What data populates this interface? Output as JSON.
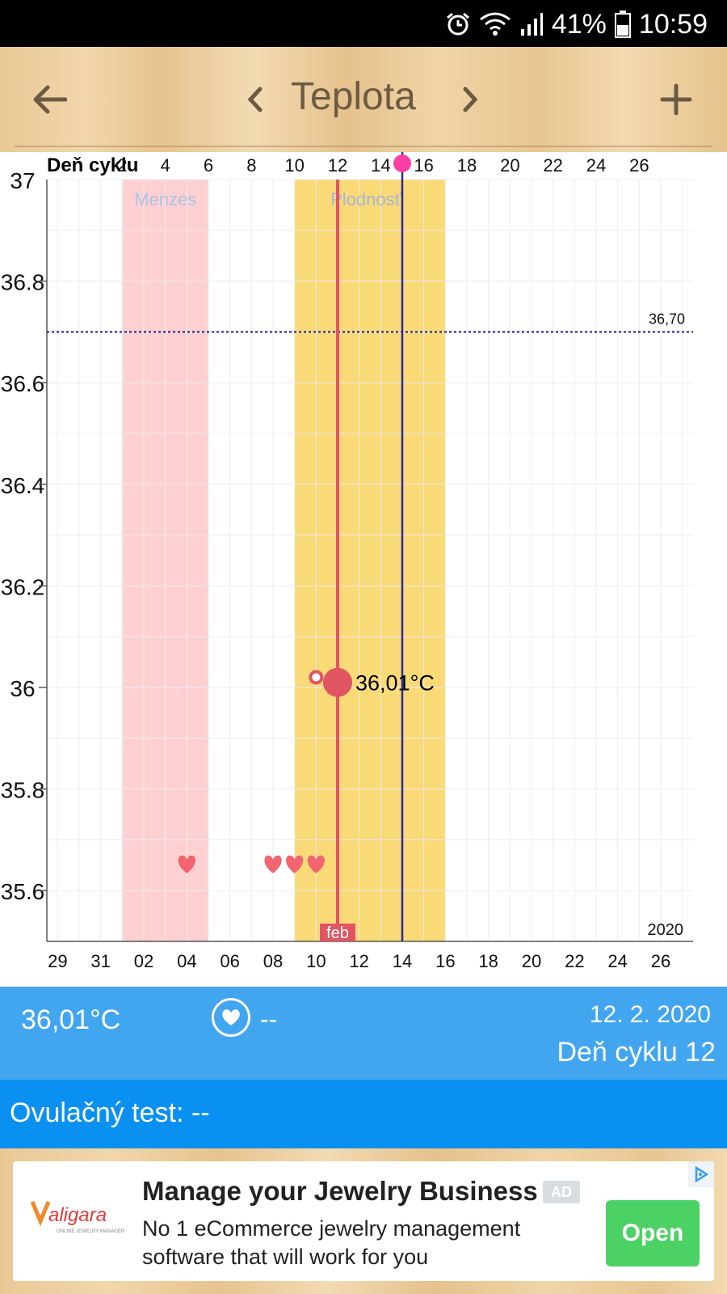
{
  "status_bar": {
    "battery": "41%",
    "time": "10:59",
    "icons": [
      "alarm-icon",
      "wifi-icon",
      "signal-icon",
      "battery-icon"
    ]
  },
  "toolbar": {
    "title": "Teplota",
    "back_icon": "arrow-left-icon",
    "prev_icon": "chevron-left-icon",
    "next_icon": "chevron-right-icon",
    "add_icon": "plus-icon"
  },
  "chart_data": {
    "type": "scatter",
    "top_axis_label": "Deň cyklu",
    "top_ticks": [
      "2",
      "4",
      "6",
      "8",
      "10",
      "12",
      "14",
      "16",
      "18",
      "20",
      "22",
      "24",
      "26"
    ],
    "bottom_ticks": [
      "29",
      "31",
      "02",
      "04",
      "06",
      "08",
      "10",
      "12",
      "14",
      "16",
      "18",
      "20",
      "22",
      "24",
      "26"
    ],
    "y_ticks": [
      "37",
      "36.8",
      "36.6",
      "36.4",
      "36.2",
      "36",
      "35.8",
      "35.6"
    ],
    "ylim": [
      35.5,
      37
    ],
    "xlim_cycle_day": [
      -1.5,
      28.5
    ],
    "bands": [
      {
        "label": "Menzes",
        "from_day": 2,
        "to_day": 6,
        "color": "#ffd0d2"
      },
      {
        "label": "Plodnosť",
        "from_day": 10,
        "to_day": 17,
        "color": "#fad977"
      }
    ],
    "threshold": {
      "value": 36.7,
      "label": "36,70",
      "color": "#1a1a8c"
    },
    "current_day_line": {
      "day": 12,
      "month_label": "feb",
      "color": "#e05561"
    },
    "ovulation_day_line": {
      "day": 15,
      "color": "#2a2a9a"
    },
    "points": [
      {
        "day": 12,
        "temp": 36.01,
        "label": "36,01°C",
        "kind": "measured"
      },
      {
        "day": 11,
        "temp": 36.02,
        "kind": "open"
      }
    ],
    "hearts_days": [
      5,
      9,
      10,
      11
    ],
    "year_label": "2020",
    "colors": {
      "heart": "#f26470",
      "marker": "#e05561",
      "grid": "#ececec"
    }
  },
  "info": {
    "temperature": "36,01°C",
    "intercourse_value": "--",
    "date": "12. 2. 2020",
    "cycle_day": "Deň cyklu 12"
  },
  "ovulation": {
    "text": "Ovulačný test: --"
  },
  "ad": {
    "brand": "Valigara",
    "brand_tagline": "ONLINE JEWELRY MANAGER",
    "title": "Manage your Jewelry Business",
    "badge": "AD",
    "description": "No 1 eCommerce jewelry management software that will work for you",
    "button": "Open",
    "choices_icon": "adchoices-icon"
  }
}
